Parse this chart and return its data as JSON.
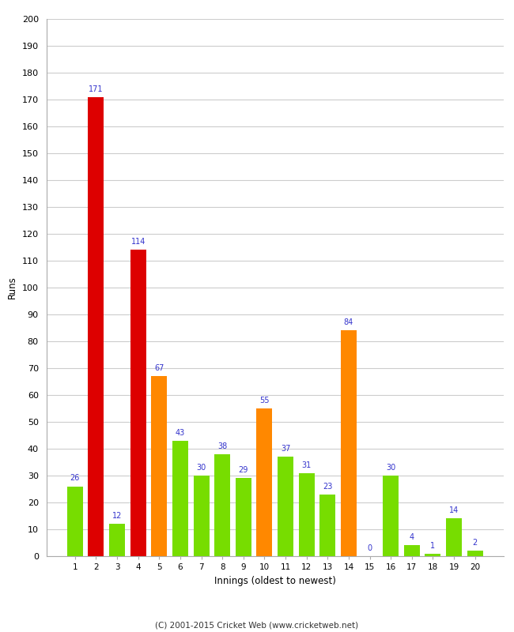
{
  "categories": [
    "1",
    "2",
    "3",
    "4",
    "5",
    "6",
    "7",
    "8",
    "9",
    "10",
    "11",
    "12",
    "13",
    "14",
    "15",
    "16",
    "17",
    "18",
    "19",
    "20"
  ],
  "values": [
    26,
    171,
    12,
    114,
    67,
    43,
    30,
    38,
    29,
    55,
    37,
    31,
    23,
    84,
    0,
    30,
    4,
    1,
    14,
    2
  ],
  "colors": [
    "#77dd00",
    "#dd0000",
    "#77dd00",
    "#dd0000",
    "#ff8800",
    "#77dd00",
    "#77dd00",
    "#77dd00",
    "#77dd00",
    "#ff8800",
    "#77dd00",
    "#77dd00",
    "#77dd00",
    "#ff8800",
    "#77dd00",
    "#77dd00",
    "#77dd00",
    "#77dd00",
    "#77dd00",
    "#77dd00"
  ],
  "xlabel": "Innings (oldest to newest)",
  "ylabel": "Runs",
  "ylim": [
    0,
    200
  ],
  "yticks": [
    0,
    10,
    20,
    30,
    40,
    50,
    60,
    70,
    80,
    90,
    100,
    110,
    120,
    130,
    140,
    150,
    160,
    170,
    180,
    190,
    200
  ],
  "label_color": "#3333cc",
  "footer": "(C) 2001-2015 Cricket Web (www.cricketweb.net)",
  "background_color": "#ffffff",
  "grid_color": "#cccccc",
  "bar_width": 0.75
}
